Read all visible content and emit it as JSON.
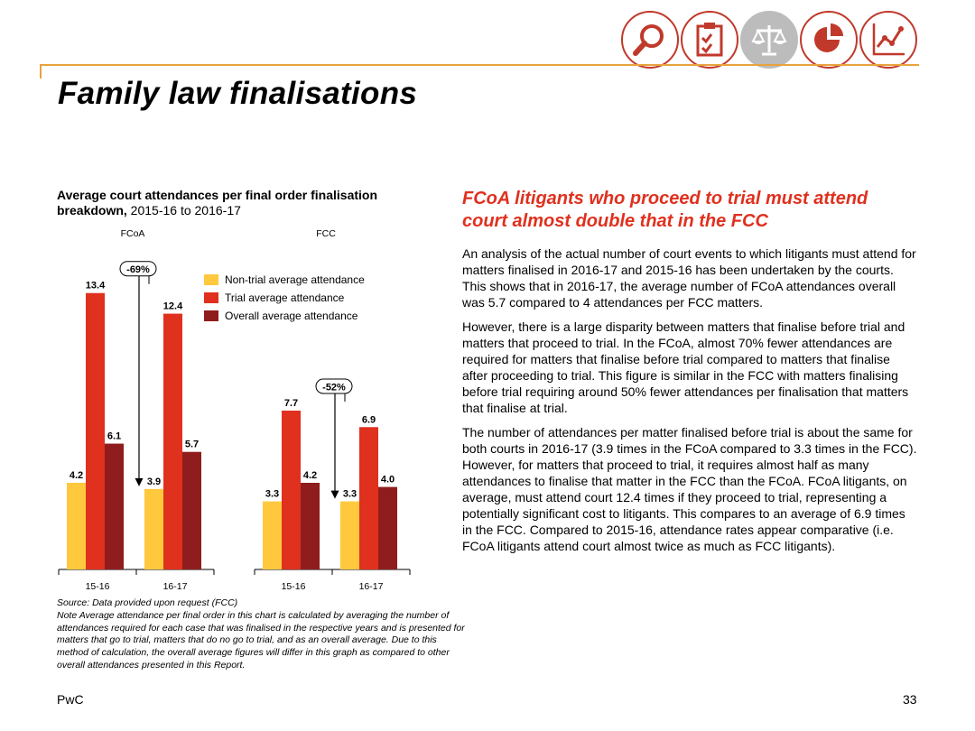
{
  "header": {
    "icons": [
      "magnifier-icon",
      "clipboard-icon",
      "scales-icon",
      "pie-chart-icon",
      "line-chart-icon"
    ],
    "active_icon": "scales-icon",
    "accent_color": "#c0392b",
    "rule_color": "#e8a33d"
  },
  "page": {
    "title": "Family law finalisations",
    "callout": "FCoA litigants who proceed to trial must attend court almost double that in the FCC",
    "paragraphs": [
      "An analysis of the actual number of court events to which litigants must attend for matters finalised in 2016-17 and 2015-16 has been undertaken by the courts. This shows that in 2016-17, the average number of FCoA attendances overall was 5.7 compared to 4 attendances per FCC matters.",
      "However, there is a large disparity between matters that finalise before trial and matters that proceed to trial. In the FCoA, almost 70% fewer attendances are required for matters that finalise before trial compared to matters that finalise after proceeding to trial. This figure is similar in the FCC with matters finalising before trial requiring around 50% fewer attendances per finalisation that matters that finalise at trial.",
      "The number of attendances per matter finalised before trial is about the same for both courts in 2016-17 (3.9 times in the FCoA compared to 3.3 times in the FCC). However, for matters that proceed to trial, it requires almost half as many attendances to finalise that matter in the FCC than the FCoA. FCoA litigants, on average, must attend court 12.4 times if they proceed to trial, representing a potentially significant cost to litigants. This compares to an average of 6.9 times in the FCC. Compared to 2015-16, attendance rates appear comparative (i.e. FCoA litigants attend court almost twice as much as FCC litigants)."
    ],
    "source_note": "Source: Data provided upon request (FCC)\nNote Average attendance per final order in this chart is calculated by averaging the number of attendances required for each case that was finalised in the respective years and is presented for matters that go to trial, matters that do no go to trial, and as an overall average. Due to this method of calculation, the overall average figures will differ in this graph as compared to other overall attendances presented in this Report.",
    "footer_left": "PwC",
    "page_number": "33"
  },
  "chart_data": {
    "type": "bar",
    "title_bold": "Average court attendances per final order finalisation breakdown,",
    "title_rest": " 2015-16 to 2016-17",
    "ylim": [
      0,
      14
    ],
    "groups": [
      {
        "name": "FCoA",
        "categories": [
          "15-16",
          "16-17"
        ],
        "annotation": "-69%",
        "series": [
          {
            "name": "Non-trial average attendance",
            "values": [
              4.2,
              3.9
            ]
          },
          {
            "name": "Trial average attendance",
            "values": [
              13.4,
              12.4
            ]
          },
          {
            "name": "Overall average attendance",
            "values": [
              6.1,
              5.7
            ]
          }
        ]
      },
      {
        "name": "FCC",
        "categories": [
          "15-16",
          "16-17"
        ],
        "annotation": "-52%",
        "series": [
          {
            "name": "Non-trial average attendance",
            "values": [
              3.3,
              3.3
            ]
          },
          {
            "name": "Trial average attendance",
            "values": [
              7.7,
              6.9
            ]
          },
          {
            "name": "Overall average attendance",
            "values": [
              4.2,
              4.0
            ]
          }
        ]
      }
    ],
    "legend": [
      {
        "name": "Non-trial average attendance",
        "color": "#ffc83d"
      },
      {
        "name": "Trial average attendance",
        "color": "#e0301e"
      },
      {
        "name": "Overall average attendance",
        "color": "#8f1d1d"
      }
    ],
    "legend_position": "top-right"
  }
}
